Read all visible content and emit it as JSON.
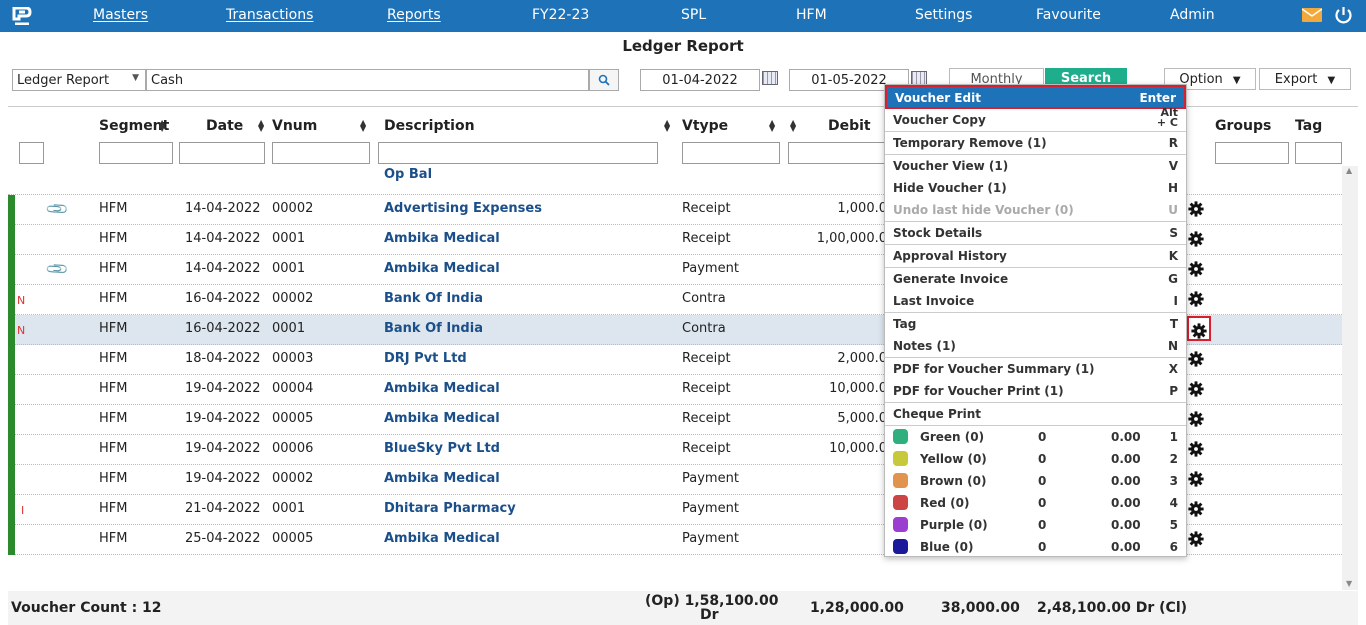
{
  "nav": {
    "items": [
      "Masters",
      "Transactions",
      "Reports",
      "FY22-23",
      "SPL",
      "HFM",
      "Settings",
      "Favourite",
      "Admin"
    ]
  },
  "page_title": "Ledger Report",
  "toolbar": {
    "report_type": "Ledger Report",
    "ledger": "Cash",
    "from_date": "01-04-2022",
    "to_date": "01-05-2022",
    "monthly_label": "Monthly",
    "search_label": "Search",
    "option_label": "Option",
    "export_label": "Export"
  },
  "columns": [
    "Segment",
    "Date",
    "Vnum",
    "Description",
    "Vtype",
    "Debit",
    "Groups",
    "Tag"
  ],
  "opening_label": "Op Bal",
  "rows": [
    {
      "flag": "",
      "attach": true,
      "segment": "HFM",
      "date": "14-04-2022",
      "vnum": "00002",
      "desc": "Advertising Expenses",
      "vtype": "Receipt",
      "debit": "1,000.0"
    },
    {
      "flag": "",
      "attach": false,
      "segment": "HFM",
      "date": "14-04-2022",
      "vnum": "0001",
      "desc": "Ambika Medical",
      "vtype": "Receipt",
      "debit": "1,00,000.0"
    },
    {
      "flag": "",
      "attach": true,
      "segment": "HFM",
      "date": "14-04-2022",
      "vnum": "0001",
      "desc": "Ambika Medical",
      "vtype": "Payment",
      "debit": ""
    },
    {
      "flag": "N",
      "attach": false,
      "segment": "HFM",
      "date": "16-04-2022",
      "vnum": "00002",
      "desc": "Bank Of India",
      "vtype": "Contra",
      "debit": ""
    },
    {
      "flag": "N",
      "attach": false,
      "segment": "HFM",
      "date": "16-04-2022",
      "vnum": "0001",
      "desc": "Bank Of India",
      "vtype": "Contra",
      "debit": ""
    },
    {
      "flag": "",
      "attach": false,
      "segment": "HFM",
      "date": "18-04-2022",
      "vnum": "00003",
      "desc": "DRJ Pvt Ltd",
      "vtype": "Receipt",
      "debit": "2,000.0"
    },
    {
      "flag": "",
      "attach": false,
      "segment": "HFM",
      "date": "19-04-2022",
      "vnum": "00004",
      "desc": "Ambika Medical",
      "vtype": "Receipt",
      "debit": "10,000.0"
    },
    {
      "flag": "",
      "attach": false,
      "segment": "HFM",
      "date": "19-04-2022",
      "vnum": "00005",
      "desc": "Ambika Medical",
      "vtype": "Receipt",
      "debit": "5,000.0"
    },
    {
      "flag": "",
      "attach": false,
      "segment": "HFM",
      "date": "19-04-2022",
      "vnum": "00006",
      "desc": "BlueSky Pvt Ltd",
      "vtype": "Receipt",
      "debit": "10,000.0"
    },
    {
      "flag": "",
      "attach": false,
      "segment": "HFM",
      "date": "19-04-2022",
      "vnum": "00002",
      "desc": "Ambika Medical",
      "vtype": "Payment",
      "debit": ""
    },
    {
      "flag": "I",
      "attach": false,
      "segment": "HFM",
      "date": "21-04-2022",
      "vnum": "0001",
      "desc": "Dhitara Pharmacy",
      "vtype": "Payment",
      "debit": ""
    },
    {
      "flag": "",
      "attach": false,
      "segment": "HFM",
      "date": "25-04-2022",
      "vnum": "00005",
      "desc": "Ambika Medical",
      "vtype": "Payment",
      "debit": ""
    }
  ],
  "footer": {
    "count": "Voucher Count : 12",
    "opening_1": "(Op) 1,58,100.00",
    "opening_2": "Dr",
    "debit_total": "1,28,000.00",
    "credit_total": "38,000.00",
    "closing": "2,48,100.00 Dr (Cl)"
  },
  "menu": {
    "items": [
      {
        "label": "Voucher Edit",
        "key": "Enter"
      },
      {
        "label": "Voucher Copy",
        "key": "Alt + C"
      },
      {
        "label": "Temporary Remove (1)",
        "key": "R"
      },
      {
        "label": "Voucher View (1)",
        "key": "V"
      },
      {
        "label": "Hide Voucher (1)",
        "key": "H"
      },
      {
        "label": "Undo last hide Voucher (0)",
        "key": "U"
      },
      {
        "label": "Stock Details",
        "key": "S"
      },
      {
        "label": "Approval History",
        "key": "K"
      },
      {
        "label": "Generate Invoice",
        "key": "G"
      },
      {
        "label": "Last Invoice",
        "key": "I"
      },
      {
        "label": "Tag",
        "key": "T"
      },
      {
        "label": "Notes (1)",
        "key": "N"
      },
      {
        "label": "PDF for Voucher Summary (1)",
        "key": "X"
      },
      {
        "label": "PDF for Voucher Print (1)",
        "key": "P"
      },
      {
        "label": "Cheque Print",
        "key": ""
      }
    ],
    "colors": [
      {
        "label": "Green (0)",
        "count": "0",
        "amount": "0.00",
        "key": "1",
        "color": "#2eaf7d"
      },
      {
        "label": "Yellow (0)",
        "count": "0",
        "amount": "0.00",
        "key": "2",
        "color": "#c8c83c"
      },
      {
        "label": "Brown (0)",
        "count": "0",
        "amount": "0.00",
        "key": "3",
        "color": "#e0944e"
      },
      {
        "label": "Red (0)",
        "count": "0",
        "amount": "0.00",
        "key": "4",
        "color": "#cc4444"
      },
      {
        "label": "Purple (0)",
        "count": "0",
        "amount": "0.00",
        "key": "5",
        "color": "#9b3fd0"
      },
      {
        "label": "Blue (0)",
        "count": "0",
        "amount": "0.00",
        "key": "6",
        "color": "#1a1a9a"
      }
    ]
  },
  "colors": {
    "nav": "#1d72b8",
    "search_button": "#1fae8c",
    "row_bar": "#2b8a2b",
    "highlight": "#d62030"
  }
}
